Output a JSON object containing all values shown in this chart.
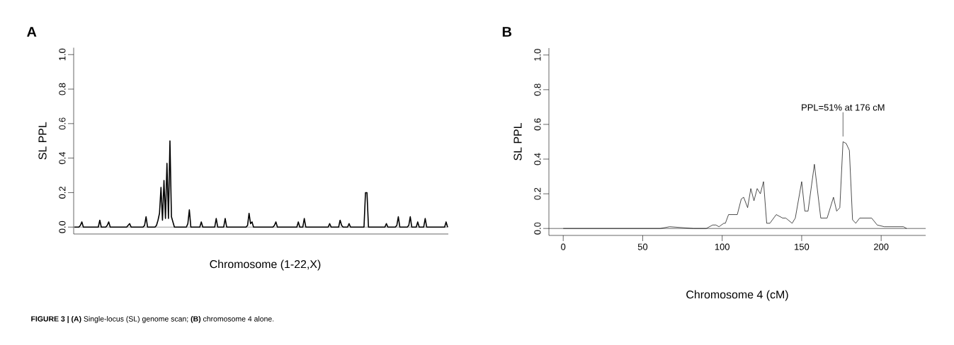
{
  "chart_data": [
    {
      "type": "line",
      "title": "A",
      "xlabel": "Chromosome (1-22,X)",
      "ylabel": "SL PPL",
      "color": "#000000",
      "tick_labels": "y",
      "categories": [
        null,
        null,
        null,
        null,
        null,
        null,
        null,
        null,
        null,
        null,
        null,
        null,
        null,
        null,
        null,
        null,
        null,
        null,
        null,
        null,
        null,
        null,
        null,
        null,
        null,
        null,
        null,
        null,
        null,
        null,
        null,
        null,
        null,
        null,
        null,
        null,
        null,
        null,
        null,
        null,
        null,
        null,
        null,
        null,
        null,
        null,
        null,
        null,
        null,
        null,
        null,
        null,
        null,
        null,
        null,
        null,
        null,
        null,
        null,
        null,
        null,
        null,
        null,
        null,
        null,
        null,
        null,
        null,
        null,
        null,
        null,
        null,
        null,
        null,
        null,
        null,
        null,
        null,
        null,
        null,
        null,
        null,
        null,
        null,
        null,
        null,
        null,
        null,
        null,
        null,
        null,
        null,
        null,
        null,
        null,
        null,
        null,
        null,
        null,
        null,
        null,
        null,
        null,
        null,
        null,
        null,
        null,
        null,
        null,
        null,
        null,
        null,
        null,
        null,
        null,
        null,
        null,
        null,
        null,
        null,
        null,
        null,
        null,
        null,
        null,
        null,
        null,
        null,
        null,
        null,
        null,
        null,
        null,
        null,
        null,
        null,
        null,
        null,
        null,
        null,
        null,
        null,
        null,
        null,
        null,
        null,
        null,
        null,
        null,
        null,
        null,
        null,
        null,
        null,
        null,
        null,
        null,
        null,
        null,
        null,
        null,
        null,
        null,
        null,
        null,
        null,
        null,
        null,
        null,
        null,
        null,
        null,
        null,
        null,
        null,
        null,
        null,
        null,
        null,
        null,
        null,
        null,
        null,
        null,
        null,
        null,
        null,
        null,
        null,
        null,
        null,
        null,
        null,
        null,
        null,
        null,
        null,
        null,
        null,
        null,
        null,
        null,
        null,
        null,
        null,
        null,
        null,
        null,
        null,
        null,
        null,
        null,
        null,
        null,
        null,
        null,
        null,
        null,
        null,
        null,
        null,
        null,
        null,
        null,
        null,
        null,
        null,
        null,
        null,
        null,
        null,
        null,
        null,
        null,
        null,
        null,
        null,
        null,
        null,
        null,
        null,
        null,
        null,
        null,
        null,
        null,
        null,
        null,
        null,
        null,
        null
      ],
      "values": [
        0,
        0,
        0,
        0,
        0.01,
        0.03,
        0,
        0,
        0,
        0,
        0,
        0,
        0,
        0,
        0,
        0,
        0,
        0.04,
        0,
        0,
        0,
        0,
        0.01,
        0.03,
        0,
        0,
        0,
        0,
        0,
        0,
        0,
        0,
        0,
        0,
        0,
        0,
        0.01,
        0.02,
        0,
        0,
        0,
        0,
        0,
        0,
        0,
        0,
        0,
        0.01,
        0.06,
        0,
        0,
        0,
        0,
        0,
        0,
        0.01,
        0.04,
        0.08,
        0.23,
        0.04,
        0.27,
        0.05,
        0.37,
        0.05,
        0.5,
        0.06,
        0.03,
        0,
        0,
        0,
        0,
        0,
        0,
        0,
        0,
        0,
        0.02,
        0.1,
        0,
        0,
        0,
        0,
        0,
        0,
        0,
        0.03,
        0,
        0,
        0,
        0,
        0,
        0,
        0,
        0,
        0,
        0.05,
        0,
        0,
        0,
        0,
        0,
        0.05,
        0,
        0,
        0,
        0,
        0,
        0,
        0,
        0,
        0,
        0,
        0,
        0,
        0,
        0,
        0.01,
        0.08,
        0.02,
        0.03,
        0,
        0,
        0,
        0,
        0,
        0,
        0,
        0,
        0,
        0,
        0,
        0,
        0,
        0,
        0.01,
        0.03,
        0,
        0,
        0,
        0,
        0,
        0,
        0,
        0,
        0,
        0,
        0,
        0,
        0,
        0,
        0.03,
        0,
        0,
        0,
        0.05,
        0,
        0,
        0,
        0,
        0,
        0,
        0,
        0,
        0,
        0,
        0,
        0,
        0,
        0,
        0,
        0,
        0.02,
        0,
        0,
        0,
        0,
        0,
        0,
        0.04,
        0.01,
        0,
        0,
        0,
        0,
        0.02,
        0,
        0,
        0,
        0,
        0,
        0,
        0,
        0,
        0,
        0,
        0.2,
        0.2,
        0,
        0,
        0,
        0,
        0,
        0,
        0,
        0,
        0,
        0,
        0,
        0,
        0.02,
        0,
        0,
        0,
        0,
        0,
        0,
        0.01,
        0.06,
        0,
        0,
        0,
        0,
        0,
        0,
        0.01,
        0.06,
        0,
        0,
        0,
        0,
        0.03,
        0,
        0,
        0,
        0,
        0.05,
        0,
        0,
        0,
        0,
        0,
        0,
        0,
        0,
        0,
        0,
        0,
        0,
        0,
        0.03,
        0
      ],
      "ylim": [
        -0.04,
        1.04
      ],
      "yticks": [
        {
          "value": 0,
          "label": "0.0"
        },
        {
          "value": 0.2,
          "label": "0.2"
        },
        {
          "value": 0.4,
          "label": "0.4"
        },
        {
          "value": 0.6,
          "label": "0.6"
        },
        {
          "value": 0.8,
          "label": "0.8"
        },
        {
          "value": 1,
          "label": "1.0"
        }
      ],
      "ref_lines": [
        {
          "axis": "y",
          "value": 0,
          "color": "#555555"
        }
      ],
      "annotations": [
        "**FIGURE 3 | (A)** Single-locus (SL) genome scan; **(B)** chromosome 4 alone."
      ]
    },
    {
      "type": "line",
      "title": "B",
      "xlabel": "Chromosome 4 (cM)",
      "ylabel": "SL PPL",
      "color": "#000000",
      "x": [
        0,
        61,
        67,
        82,
        90,
        94,
        96,
        98,
        101,
        102,
        104,
        106,
        109.5,
        112,
        113.5,
        116,
        118,
        120,
        122,
        124,
        126,
        128,
        130,
        134,
        138,
        140,
        144,
        146,
        150,
        152,
        154,
        158,
        162,
        166,
        170,
        172,
        174,
        176,
        178,
        180,
        182,
        184,
        186.5,
        194,
        197.5,
        202,
        206,
        214,
        216
      ],
      "values": [
        0,
        0,
        0.01,
        0,
        0,
        0.02,
        0.02,
        0.01,
        0.03,
        0.03,
        0.08,
        0.08,
        0.08,
        0.17,
        0.18,
        0.12,
        0.23,
        0.16,
        0.23,
        0.2,
        0.27,
        0.03,
        0.03,
        0.08,
        0.06,
        0.06,
        0.03,
        0.06,
        0.27,
        0.1,
        0.1,
        0.37,
        0.06,
        0.06,
        0.18,
        0.1,
        0.12,
        0.5,
        0.49,
        0.45,
        0.05,
        0.03,
        0.06,
        0.06,
        0.02,
        0.01,
        0.01,
        0.01,
        0
      ],
      "xlim": [
        -9,
        228
      ],
      "ylim": [
        -0.04,
        1.04
      ],
      "xticks": [
        0,
        50,
        100,
        150,
        200
      ],
      "yticks": [
        {
          "value": 0,
          "label": "0.0"
        },
        {
          "value": 0.2,
          "label": "0.2"
        },
        {
          "value": 0.4,
          "label": "0.4"
        },
        {
          "value": 0.6,
          "label": "0.6"
        },
        {
          "value": 0.8,
          "label": "0.8"
        },
        {
          "value": 1,
          "label": "1.0"
        }
      ],
      "ref_lines": [
        {
          "axis": "y",
          "value": 0
        }
      ],
      "annotations": [
        {
          "text": "PPL=51% at 176 cM",
          "x": 176,
          "y": 0.51
        }
      ]
    }
  ]
}
